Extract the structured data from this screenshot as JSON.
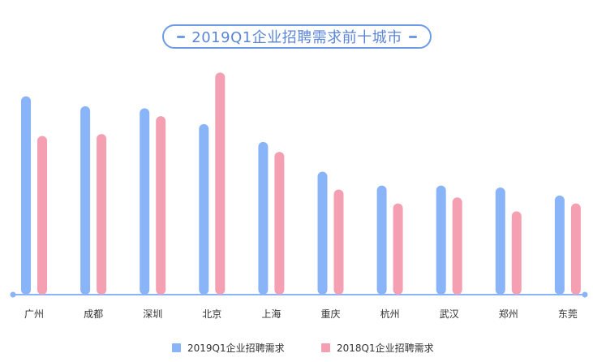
{
  "chart_data": {
    "type": "bar",
    "title": "2019Q1企业招聘需求前十城市",
    "categories": [
      "广州",
      "成都",
      "深圳",
      "北京",
      "上海",
      "重庆",
      "杭州",
      "武汉",
      "郑州",
      "东莞"
    ],
    "series": [
      {
        "name": "2019Q1企业招聘需求",
        "color": "#8ab4f8",
        "values": [
          100,
          95,
          94,
          86,
          77,
          62,
          55,
          55,
          54,
          50
        ]
      },
      {
        "name": "2018Q1企业招聘需求",
        "color": "#f4a0b2",
        "values": [
          80,
          81,
          90,
          112,
          72,
          53,
          46,
          49,
          42,
          46
        ]
      }
    ],
    "ylim": [
      0,
      115
    ],
    "grid": false,
    "legend": "bottom",
    "axis_color": "#8ab4f8",
    "title_color": "#5b86d8"
  }
}
